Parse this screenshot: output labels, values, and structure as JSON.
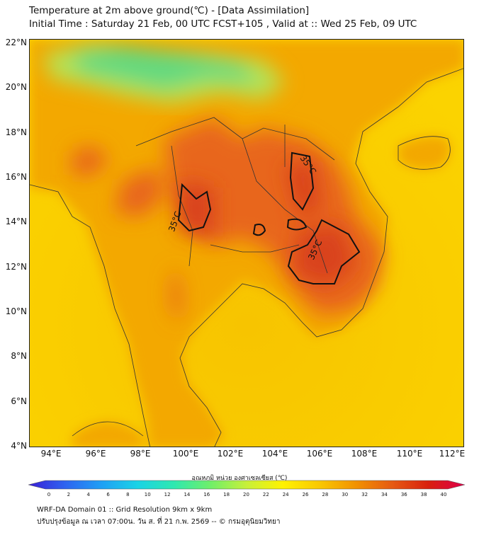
{
  "header": {
    "title_line1": "Temperature at 2m above ground(℃) - [Data Assimilation]",
    "title_line2": "Initial Time : Saturday 21 Feb, 00 UTC FCST+105 , Valid at :: Wed 25 Feb, 09 UTC"
  },
  "map": {
    "lat_labels": [
      "22°N",
      "20°N",
      "18°N",
      "16°N",
      "14°N",
      "12°N",
      "10°N",
      "8°N",
      "6°N",
      "4°N"
    ],
    "lon_labels": [
      "94°E",
      "96°E",
      "98°E",
      "100°E",
      "102°E",
      "104°E",
      "106°E",
      "108°E",
      "110°E",
      "112°E"
    ],
    "contour_labels": [
      "35°C",
      "35°C",
      "35°C"
    ],
    "land_color": "#f6b200",
    "hot_color": "#e4521a",
    "sea_color": "#f9c800",
    "cool_color": "#3fd98a"
  },
  "colorbar": {
    "title": "อุณหภูมิ หน่วย องศาเซลเซียส (℃)",
    "ticks": [
      "0",
      "2",
      "4",
      "6",
      "8",
      "10",
      "12",
      "14",
      "16",
      "18",
      "20",
      "22",
      "24",
      "26",
      "28",
      "30",
      "32",
      "34",
      "36",
      "38",
      "40"
    ],
    "colors": [
      "#3a1fd6",
      "#2e63f0",
      "#1f9ff5",
      "#1ad3e6",
      "#2ee8b0",
      "#6fef6a",
      "#c7f03a",
      "#fff200",
      "#f9c800",
      "#f29200",
      "#e65a12",
      "#d8200e",
      "#e0004b"
    ]
  },
  "footer": {
    "line1": "WRF-DA Domain 01 :: Grid Resolution 9km x 9km",
    "line2": "ปรับปรุงข้อมูล ณ เวลา 07:00น. วัน ส. ที่ 21 ก.พ. 2569 -- © กรมอุตุนิยมวิทยา"
  }
}
